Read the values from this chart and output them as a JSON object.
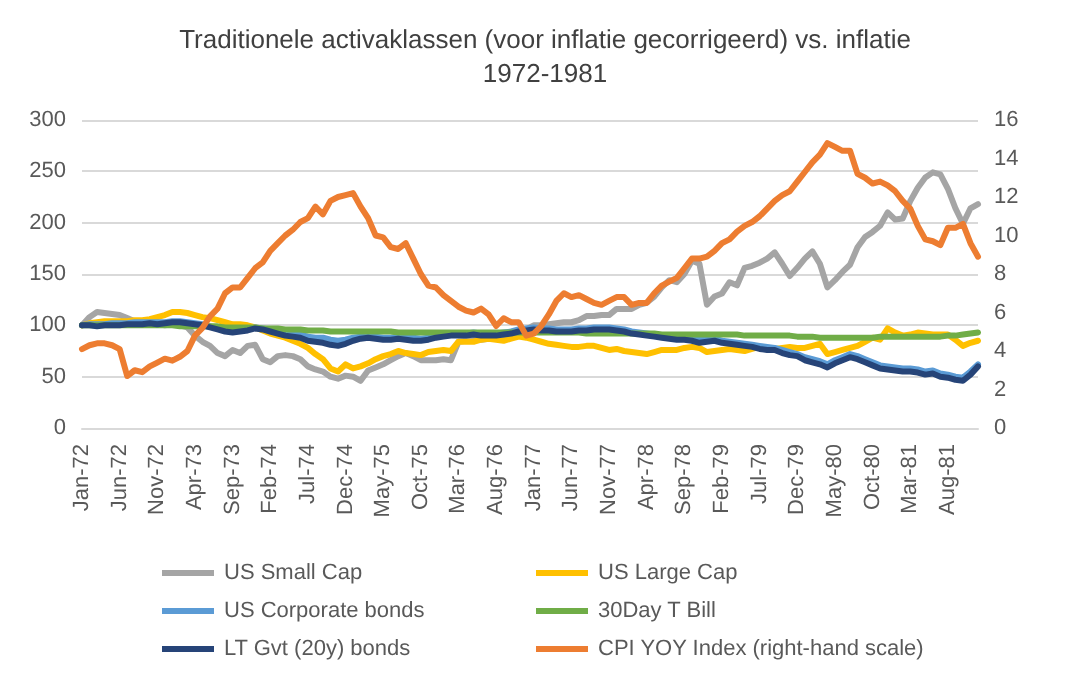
{
  "chart_data": {
    "type": "line",
    "title": "Traditionele activaklassen (voor inflatie gecorrigeerd) vs. inflatie\n1972-1981",
    "categories": [
      "Jan-72",
      null,
      null,
      null,
      null,
      "Jun-72",
      null,
      null,
      null,
      null,
      "Nov-72",
      null,
      null,
      null,
      null,
      "Apr-73",
      null,
      null,
      null,
      null,
      "Sep-73",
      null,
      null,
      null,
      null,
      "Feb-74",
      null,
      null,
      null,
      null,
      "Jul-74",
      null,
      null,
      null,
      null,
      "Dec-74",
      null,
      null,
      null,
      null,
      "May-75",
      null,
      null,
      null,
      null,
      "Oct-75",
      null,
      null,
      null,
      null,
      "Mar-76",
      null,
      null,
      null,
      null,
      "Aug-76",
      null,
      null,
      null,
      null,
      "Jan-77",
      null,
      null,
      null,
      null,
      "Jun-77",
      null,
      null,
      null,
      null,
      "Nov-77",
      null,
      null,
      null,
      null,
      "Apr-78",
      null,
      null,
      null,
      null,
      "Sep-78",
      null,
      null,
      null,
      null,
      "Feb-79",
      null,
      null,
      null,
      null,
      "Jul-79",
      null,
      null,
      null,
      null,
      "Dec-79",
      null,
      null,
      null,
      null,
      "May-80",
      null,
      null,
      null,
      null,
      "Oct-80",
      null,
      null,
      null,
      null,
      "Mar-81",
      null,
      null,
      null,
      null,
      "Aug-81",
      null,
      null,
      null,
      null
    ],
    "series": [
      {
        "name": "US Small Cap",
        "color": "#a5a5a5",
        "values": [
          100,
          108,
          113,
          112,
          111,
          110,
          107,
          104,
          102,
          104,
          102,
          100,
          101,
          100,
          98,
          90,
          84,
          80,
          73,
          70,
          76,
          73,
          80,
          81,
          67,
          64,
          70,
          71,
          70,
          67,
          60,
          57,
          55,
          50,
          48,
          51,
          50,
          46,
          56,
          59,
          62,
          66,
          70,
          73,
          70,
          66,
          66,
          66,
          67,
          66,
          84,
          85,
          87,
          86,
          87,
          90,
          90,
          92,
          95,
          96,
          100,
          100,
          101,
          102,
          103,
          103,
          105,
          109,
          109,
          110,
          110,
          116,
          116,
          116,
          120,
          122,
          128,
          137,
          144,
          142,
          150,
          163,
          160,
          120,
          128,
          131,
          142,
          139,
          156,
          158,
          161,
          165,
          171,
          160,
          148,
          156,
          165,
          172,
          160,
          137,
          144,
          152,
          159,
          176,
          186,
          191,
          197,
          210,
          203,
          204,
          221,
          234,
          244,
          249,
          247,
          233,
          214,
          199,
          214,
          218
        ]
      },
      {
        "name": "US Large Cap",
        "color": "#ffc000",
        "values": [
          100,
          102,
          103,
          104,
          104,
          104,
          104,
          105,
          105,
          106,
          108,
          110,
          113,
          113,
          112,
          110,
          108,
          107,
          105,
          103,
          101,
          101,
          100,
          98,
          95,
          92,
          90,
          88,
          85,
          82,
          78,
          72,
          67,
          58,
          55,
          62,
          58,
          60,
          63,
          67,
          70,
          72,
          75,
          73,
          72,
          71,
          74,
          75,
          76,
          75,
          84,
          84,
          84,
          86,
          87,
          86,
          85,
          87,
          89,
          88,
          86,
          84,
          82,
          81,
          80,
          79,
          79,
          80,
          80,
          78,
          76,
          77,
          75,
          74,
          73,
          72,
          74,
          76,
          76,
          76,
          78,
          79,
          78,
          74,
          75,
          76,
          77,
          76,
          75,
          77,
          79,
          78,
          77,
          78,
          79,
          78,
          78,
          80,
          82,
          72,
          74,
          76,
          78,
          80,
          84,
          88,
          86,
          97,
          93,
          90,
          91,
          93,
          92,
          91,
          91,
          91,
          86,
          80,
          83,
          85
        ]
      },
      {
        "name": "US Corporate bonds",
        "color": "#5b9bd5",
        "values": [
          100,
          101,
          101,
          101,
          102,
          102,
          102,
          103,
          103,
          103,
          103,
          103,
          104,
          104,
          103,
          102,
          101,
          99,
          97,
          96,
          95,
          95,
          96,
          98,
          97,
          96,
          94,
          93,
          92,
          91,
          89,
          88,
          88,
          86,
          85,
          86,
          88,
          89,
          90,
          89,
          88,
          88,
          89,
          88,
          88,
          87,
          88,
          90,
          91,
          92,
          92,
          92,
          93,
          92,
          92,
          92,
          93,
          94,
          96,
          97,
          98,
          97,
          97,
          96,
          96,
          96,
          97,
          97,
          98,
          98,
          98,
          97,
          96,
          94,
          93,
          92,
          91,
          90,
          89,
          88,
          88,
          87,
          86,
          86,
          87,
          85,
          84,
          83,
          82,
          81,
          80,
          79,
          78,
          76,
          74,
          72,
          69,
          67,
          65,
          62,
          66,
          69,
          72,
          70,
          67,
          64,
          61,
          60,
          59,
          58,
          58,
          57,
          55,
          56,
          53,
          52,
          50,
          49,
          55,
          62
        ]
      },
      {
        "name": "30Day T Bill",
        "color": "#70ad47",
        "values": [
          100,
          100,
          100,
          100,
          100,
          100,
          100,
          100,
          100,
          100,
          100,
          100,
          100,
          99,
          99,
          99,
          99,
          99,
          99,
          98,
          98,
          98,
          98,
          98,
          97,
          97,
          97,
          96,
          96,
          96,
          95,
          95,
          95,
          94,
          94,
          94,
          94,
          94,
          94,
          94,
          94,
          94,
          93,
          93,
          93,
          93,
          93,
          93,
          93,
          93,
          93,
          93,
          93,
          93,
          93,
          93,
          93,
          93,
          93,
          93,
          93,
          93,
          93,
          93,
          93,
          93,
          93,
          92,
          92,
          92,
          92,
          92,
          92,
          92,
          92,
          92,
          92,
          91,
          91,
          91,
          91,
          91,
          91,
          91,
          91,
          91,
          91,
          91,
          90,
          90,
          90,
          90,
          90,
          90,
          90,
          89,
          89,
          89,
          88,
          88,
          88,
          88,
          88,
          88,
          88,
          88,
          89,
          89,
          89,
          89,
          89,
          89,
          89,
          89,
          89,
          90,
          90,
          91,
          92,
          93
        ]
      },
      {
        "name": "LT Gvt (20y) bonds",
        "color": "#264478",
        "values": [
          100,
          100,
          99,
          100,
          100,
          100,
          101,
          101,
          101,
          102,
          101,
          102,
          103,
          103,
          102,
          101,
          100,
          98,
          96,
          94,
          93,
          94,
          95,
          97,
          96,
          94,
          92,
          90,
          89,
          88,
          85,
          84,
          83,
          81,
          80,
          82,
          85,
          87,
          88,
          87,
          86,
          86,
          87,
          86,
          85,
          85,
          86,
          88,
          89,
          90,
          90,
          90,
          91,
          90,
          90,
          90,
          91,
          92,
          94,
          95,
          96,
          95,
          95,
          94,
          94,
          94,
          95,
          95,
          96,
          96,
          96,
          95,
          94,
          92,
          91,
          90,
          89,
          88,
          87,
          86,
          86,
          85,
          83,
          84,
          85,
          83,
          82,
          81,
          80,
          79,
          77,
          76,
          76,
          73,
          71,
          70,
          66,
          64,
          62,
          59,
          63,
          66,
          69,
          67,
          64,
          61,
          58,
          57,
          56,
          55,
          55,
          54,
          52,
          53,
          50,
          49,
          47,
          46,
          52,
          60
        ]
      },
      {
        "name": "CPI YOY Index (right-hand scale)",
        "color": "#ed7d31",
        "axis": "y2",
        "values": [
          4.1,
          4.3,
          4.4,
          4.4,
          4.3,
          4.1,
          2.7,
          3.0,
          2.9,
          3.2,
          3.4,
          3.6,
          3.5,
          3.7,
          4.0,
          4.8,
          5.2,
          5.8,
          6.2,
          7.0,
          7.3,
          7.3,
          7.8,
          8.3,
          8.6,
          9.2,
          9.6,
          10.0,
          10.3,
          10.7,
          10.9,
          11.5,
          11.1,
          11.8,
          12.0,
          12.1,
          12.2,
          11.5,
          10.9,
          10.0,
          9.9,
          9.4,
          9.3,
          9.6,
          8.8,
          8.0,
          7.4,
          7.3,
          6.9,
          6.6,
          6.3,
          6.1,
          6.0,
          6.2,
          5.9,
          5.3,
          5.7,
          5.5,
          5.5,
          4.8,
          4.9,
          5.3,
          5.9,
          6.6,
          7.0,
          6.8,
          6.9,
          6.7,
          6.5,
          6.4,
          6.6,
          6.8,
          6.8,
          6.4,
          6.5,
          6.5,
          7.0,
          7.4,
          7.6,
          7.8,
          8.3,
          8.8,
          8.8,
          8.9,
          9.2,
          9.6,
          9.8,
          10.2,
          10.5,
          10.7,
          11.0,
          11.4,
          11.8,
          12.1,
          12.3,
          12.8,
          13.3,
          13.8,
          14.2,
          14.8,
          14.6,
          14.4,
          14.4,
          13.2,
          13.0,
          12.7,
          12.8,
          12.6,
          12.3,
          11.8,
          11.4,
          10.5,
          9.8,
          9.7,
          9.5,
          10.4,
          10.4,
          10.6,
          9.6,
          8.9
        ]
      }
    ],
    "ylim": [
      0,
      300
    ],
    "yticks": [
      0,
      50,
      100,
      150,
      200,
      250,
      300
    ],
    "y2lim": [
      0,
      16
    ],
    "y2ticks": [
      0,
      2,
      4,
      6,
      8,
      10,
      12,
      14,
      16
    ],
    "grid": "y",
    "legend": "bottom",
    "marker": "none",
    "line_style": "solid"
  }
}
